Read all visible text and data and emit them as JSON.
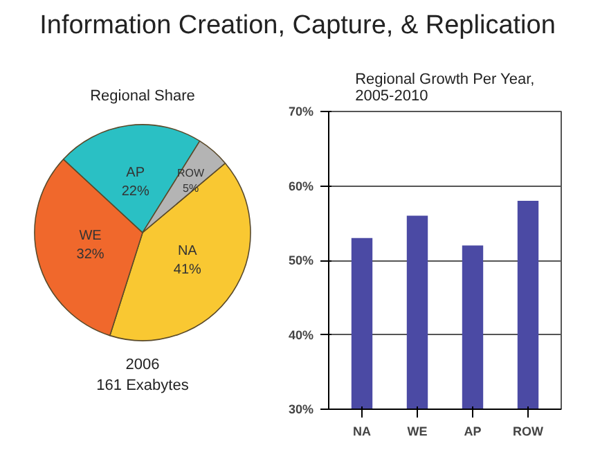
{
  "chart_data": [
    {
      "type": "pie",
      "title": "Information Creation, Capture, & Replication",
      "subtitle": "Regional Share",
      "categories": [
        "NA",
        "WE",
        "AP",
        "ROW"
      ],
      "values": [
        41,
        32,
        22,
        5
      ],
      "colors": [
        "#f9c832",
        "#f0682c",
        "#2ac0c4",
        "#b4b4b4"
      ],
      "value_labels": [
        "41%",
        "32%",
        "22%",
        "5%"
      ],
      "annotations": [
        "2006",
        "161 Exabytes"
      ]
    },
    {
      "type": "bar",
      "title": "Regional Growth Per Year,\n2005-2010",
      "categories": [
        "NA",
        "WE",
        "AP",
        "ROW"
      ],
      "values": [
        53,
        56,
        52,
        58
      ],
      "color": "#4b4aa4",
      "ylim": [
        30,
        70
      ],
      "yticks": [
        {
          "value": 30,
          "label": "30%"
        },
        {
          "value": 40,
          "label": "40%"
        },
        {
          "value": 50,
          "label": "50%"
        },
        {
          "value": 60,
          "label": "60%"
        },
        {
          "value": 70,
          "label": "70%"
        }
      ],
      "grid": "y"
    }
  ]
}
